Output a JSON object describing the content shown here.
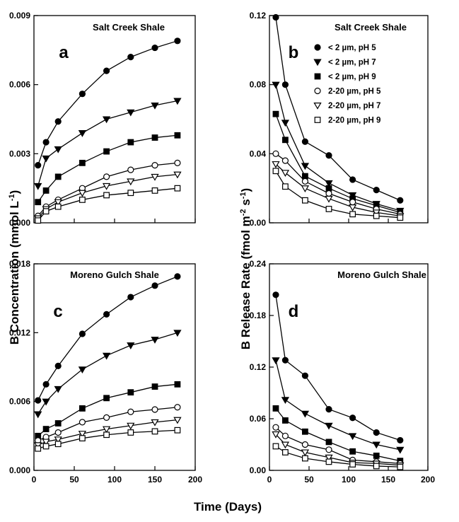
{
  "chart_data": [
    {
      "type": "line",
      "panel": "a",
      "title": "Salt Creek Shale",
      "ylim": [
        0,
        0.009
      ],
      "yticks": [
        "0.000",
        "0.003",
        "0.006",
        "0.009"
      ],
      "xlim": [
        0,
        200
      ],
      "xticks": [],
      "series": [
        {
          "name": "< 2 µm, pH 5",
          "marker": "circle-filled",
          "x": [
            5,
            15,
            30,
            60,
            90,
            120,
            150,
            178
          ],
          "y": [
            0.0025,
            0.0035,
            0.0044,
            0.0056,
            0.0066,
            0.0072,
            0.0076,
            0.0079
          ]
        },
        {
          "name": "< 2 µm, pH 7",
          "marker": "triangle-filled",
          "x": [
            5,
            15,
            30,
            60,
            90,
            120,
            150,
            178
          ],
          "y": [
            0.0016,
            0.0028,
            0.0032,
            0.0039,
            0.0045,
            0.0048,
            0.0051,
            0.0053
          ]
        },
        {
          "name": "< 2 µm, pH 9",
          "marker": "square-filled",
          "x": [
            5,
            15,
            30,
            60,
            90,
            120,
            150,
            178
          ],
          "y": [
            0.0009,
            0.0014,
            0.002,
            0.0026,
            0.0031,
            0.0035,
            0.0037,
            0.0038
          ]
        },
        {
          "name": "2-20 µm, pH 5",
          "marker": "circle-open",
          "x": [
            5,
            15,
            30,
            60,
            90,
            120,
            150,
            178
          ],
          "y": [
            0.0003,
            0.0007,
            0.001,
            0.0015,
            0.002,
            0.0023,
            0.0025,
            0.0026
          ]
        },
        {
          "name": "2-20 µm, pH 7",
          "marker": "triangle-open",
          "x": [
            5,
            15,
            30,
            60,
            90,
            120,
            150,
            178
          ],
          "y": [
            0.0002,
            0.0006,
            0.0009,
            0.0013,
            0.0016,
            0.0018,
            0.002,
            0.0021
          ]
        },
        {
          "name": "2-20 µm, pH 9",
          "marker": "square-open",
          "x": [
            5,
            15,
            30,
            60,
            90,
            120,
            150,
            178
          ],
          "y": [
            0.0001,
            0.0005,
            0.0007,
            0.001,
            0.0012,
            0.0013,
            0.0014,
            0.0015
          ]
        }
      ]
    },
    {
      "type": "line",
      "panel": "b",
      "title": "Salt Creek Shale",
      "legend_placement": "right",
      "ylim": [
        0,
        0.12
      ],
      "yticks": [
        "0.00",
        "0.04",
        "0.08",
        "0.12"
      ],
      "xlim": [
        0,
        200
      ],
      "xticks": [],
      "series": [
        {
          "name": "< 2 µm, pH 5",
          "marker": "circle-filled",
          "x": [
            8,
            20,
            45,
            75,
            105,
            135,
            165
          ],
          "y": [
            0.119,
            0.08,
            0.047,
            0.039,
            0.025,
            0.019,
            0.013
          ]
        },
        {
          "name": "< 2 µm, pH 7",
          "marker": "triangle-filled",
          "x": [
            8,
            20,
            45,
            75,
            105,
            135,
            165
          ],
          "y": [
            0.08,
            0.058,
            0.033,
            0.023,
            0.016,
            0.011,
            0.007
          ]
        },
        {
          "name": "< 2 µm, pH 9",
          "marker": "square-filled",
          "x": [
            8,
            20,
            45,
            75,
            105,
            135,
            165
          ],
          "y": [
            0.063,
            0.048,
            0.027,
            0.02,
            0.014,
            0.01,
            0.006
          ]
        },
        {
          "name": "2-20 µm, pH 5",
          "marker": "circle-open",
          "x": [
            8,
            20,
            45,
            75,
            105,
            135,
            165
          ],
          "y": [
            0.04,
            0.036,
            0.024,
            0.017,
            0.012,
            0.008,
            0.005
          ]
        },
        {
          "name": "2-20 µm, pH 7",
          "marker": "triangle-open",
          "x": [
            8,
            20,
            45,
            75,
            105,
            135,
            165
          ],
          "y": [
            0.034,
            0.029,
            0.02,
            0.014,
            0.009,
            0.006,
            0.004
          ]
        },
        {
          "name": "2-20 µm, pH 9",
          "marker": "square-open",
          "x": [
            8,
            20,
            45,
            75,
            105,
            135,
            165
          ],
          "y": [
            0.03,
            0.021,
            0.013,
            0.008,
            0.005,
            0.004,
            0.003
          ]
        }
      ]
    },
    {
      "type": "line",
      "panel": "c",
      "title": "Moreno Gulch Shale",
      "ylim": [
        0,
        0.018
      ],
      "yticks": [
        "0.000",
        "0.006",
        "0.012",
        "0.018"
      ],
      "xlim": [
        0,
        200
      ],
      "xticks": [
        "0",
        "50",
        "100",
        "150",
        "200"
      ],
      "series": [
        {
          "name": "< 2 µm, pH 5",
          "marker": "circle-filled",
          "x": [
            5,
            15,
            30,
            60,
            90,
            120,
            150,
            178
          ],
          "y": [
            0.0061,
            0.0075,
            0.0091,
            0.0119,
            0.0136,
            0.0151,
            0.0161,
            0.0169
          ]
        },
        {
          "name": "< 2 µm, pH 7",
          "marker": "triangle-filled",
          "x": [
            5,
            15,
            30,
            60,
            90,
            120,
            150,
            178
          ],
          "y": [
            0.0049,
            0.006,
            0.0071,
            0.0088,
            0.01,
            0.0109,
            0.0114,
            0.012
          ]
        },
        {
          "name": "< 2 µm, pH 9",
          "marker": "square-filled",
          "x": [
            5,
            15,
            30,
            60,
            90,
            120,
            150,
            178
          ],
          "y": [
            0.003,
            0.0036,
            0.0041,
            0.0054,
            0.0063,
            0.0068,
            0.0073,
            0.0075
          ]
        },
        {
          "name": "2-20 µm, pH 5",
          "marker": "circle-open",
          "x": [
            5,
            15,
            30,
            60,
            90,
            120,
            150,
            178
          ],
          "y": [
            0.0026,
            0.0029,
            0.0033,
            0.0042,
            0.0046,
            0.0051,
            0.0053,
            0.0055
          ]
        },
        {
          "name": "2-20 µm, pH 7",
          "marker": "triangle-open",
          "x": [
            5,
            15,
            30,
            60,
            90,
            120,
            150,
            178
          ],
          "y": [
            0.0022,
            0.0025,
            0.0027,
            0.0032,
            0.0036,
            0.0039,
            0.0042,
            0.0044
          ]
        },
        {
          "name": "2-20 µm, pH 9",
          "marker": "square-open",
          "x": [
            5,
            15,
            30,
            60,
            90,
            120,
            150,
            178
          ],
          "y": [
            0.0019,
            0.0021,
            0.0023,
            0.0028,
            0.0031,
            0.0033,
            0.0034,
            0.0035
          ]
        }
      ]
    },
    {
      "type": "line",
      "panel": "d",
      "title": "Moreno Gulch Shale",
      "ylim": [
        0,
        0.24
      ],
      "yticks": [
        "0.00",
        "0.06",
        "0.12",
        "0.18",
        "0.24"
      ],
      "xlim": [
        0,
        200
      ],
      "xticks": [
        "0",
        "50",
        "100",
        "150",
        "200"
      ],
      "series": [
        {
          "name": "< 2 µm, pH 5",
          "marker": "circle-filled",
          "x": [
            8,
            20,
            45,
            75,
            105,
            135,
            165
          ],
          "y": [
            0.204,
            0.128,
            0.11,
            0.071,
            0.061,
            0.044,
            0.035
          ]
        },
        {
          "name": "< 2 µm, pH 7",
          "marker": "triangle-filled",
          "x": [
            8,
            20,
            45,
            75,
            105,
            135,
            165
          ],
          "y": [
            0.128,
            0.082,
            0.066,
            0.052,
            0.04,
            0.03,
            0.024
          ]
        },
        {
          "name": "< 2 µm, pH 9",
          "marker": "square-filled",
          "x": [
            8,
            20,
            45,
            75,
            105,
            135,
            165
          ],
          "y": [
            0.072,
            0.058,
            0.045,
            0.033,
            0.022,
            0.017,
            0.011
          ]
        },
        {
          "name": "2-20 µm, pH 5",
          "marker": "circle-open",
          "x": [
            8,
            20,
            45,
            75,
            105,
            135,
            165
          ],
          "y": [
            0.05,
            0.04,
            0.03,
            0.024,
            0.012,
            0.01,
            0.008
          ]
        },
        {
          "name": "2-20 µm, pH 7",
          "marker": "triangle-open",
          "x": [
            8,
            20,
            45,
            75,
            105,
            135,
            165
          ],
          "y": [
            0.042,
            0.03,
            0.021,
            0.015,
            0.009,
            0.008,
            0.006
          ]
        },
        {
          "name": "2-20 µm, pH 9",
          "marker": "square-open",
          "x": [
            8,
            20,
            45,
            75,
            105,
            135,
            165
          ],
          "y": [
            0.028,
            0.021,
            0.014,
            0.01,
            0.007,
            0.005,
            0.004
          ]
        }
      ]
    }
  ],
  "axes": {
    "left_ylabel": "B Concentration (mmol L",
    "left_ylabel_sup": "-1",
    "left_ylabel_end": ")",
    "right_ylabel": "B Release Rate (fmol m",
    "right_ylabel_sup1": "-2",
    "right_ylabel_mid": " s",
    "right_ylabel_sup2": "-1",
    "right_ylabel_end": ")",
    "xlabel": "Time (Days)"
  }
}
